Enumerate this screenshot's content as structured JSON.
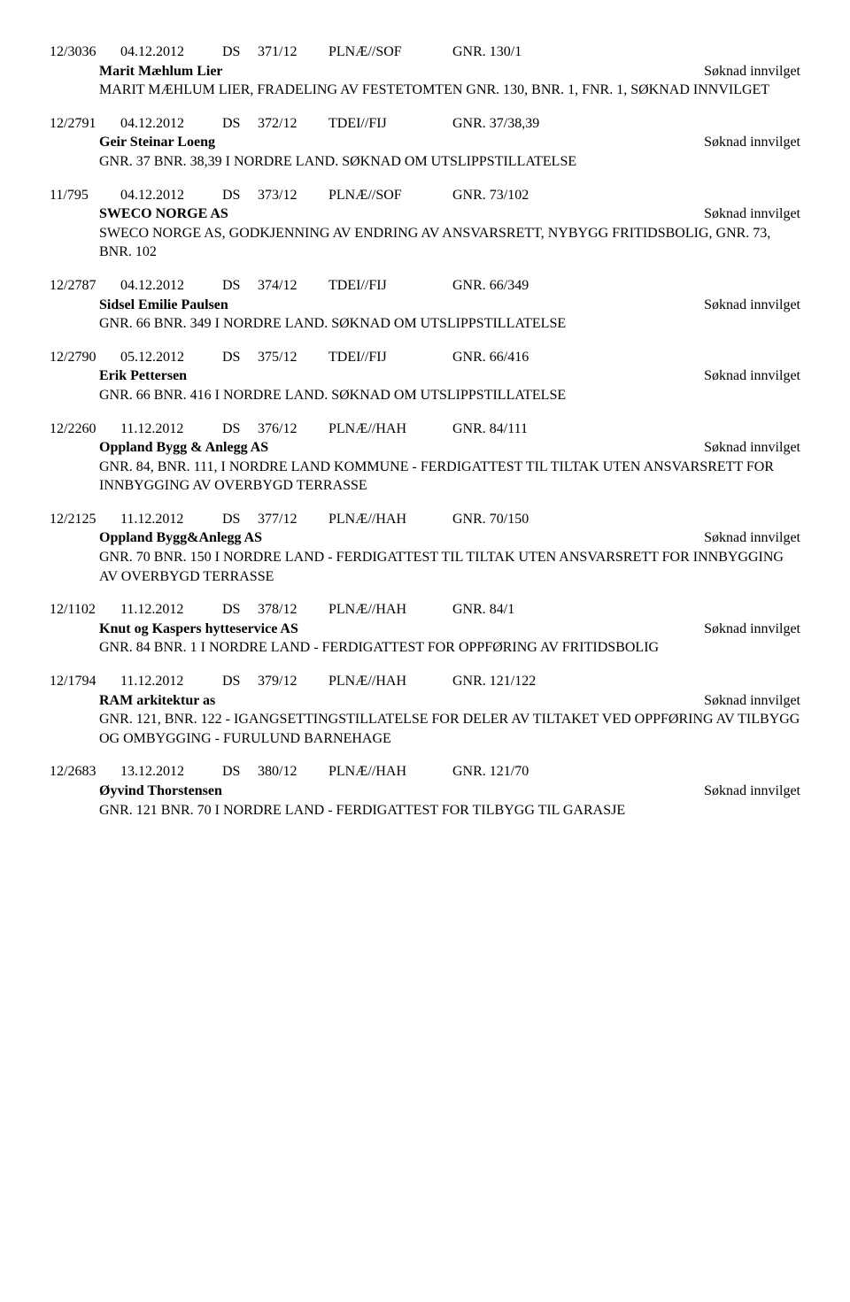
{
  "entries": [
    {
      "case": "12/3036",
      "date": "04.12.2012",
      "type": "DS",
      "num": "371/12",
      "dept": "PLNÆ//SOF",
      "gnr": "GNR. 130/1",
      "applicant": "Marit Mæhlum Lier",
      "status": "Søknad innvilget",
      "desc": "MARIT MÆHLUM LIER, FRADELING AV FESTETOMTEN GNR. 130, BNR. 1, FNR. 1, SØKNAD INNVILGET"
    },
    {
      "case": "12/2791",
      "date": "04.12.2012",
      "type": "DS",
      "num": "372/12",
      "dept": "TDEI//FIJ",
      "gnr": "GNR. 37/38,39",
      "applicant": "Geir Steinar Loeng",
      "status": "Søknad innvilget",
      "desc": "GNR. 37 BNR. 38,39 I NORDRE LAND. SØKNAD OM UTSLIPPSTILLATELSE"
    },
    {
      "case": "11/795",
      "date": "04.12.2012",
      "type": "DS",
      "num": "373/12",
      "dept": "PLNÆ//SOF",
      "gnr": "GNR. 73/102",
      "applicant": "SWECO NORGE AS",
      "status": "Søknad innvilget",
      "desc": "SWECO NORGE AS, GODKJENNING AV ENDRING AV ANSVARSRETT, NYBYGG FRITIDSBOLIG, GNR. 73, BNR. 102"
    },
    {
      "case": "12/2787",
      "date": "04.12.2012",
      "type": "DS",
      "num": "374/12",
      "dept": "TDEI//FIJ",
      "gnr": "GNR. 66/349",
      "applicant": "Sidsel Emilie Paulsen",
      "status": "Søknad innvilget",
      "desc": "GNR. 66 BNR. 349 I NORDRE LAND. SØKNAD OM UTSLIPPSTILLATELSE"
    },
    {
      "case": "12/2790",
      "date": "05.12.2012",
      "type": "DS",
      "num": "375/12",
      "dept": "TDEI//FIJ",
      "gnr": "GNR. 66/416",
      "applicant": "Erik Pettersen",
      "status": "Søknad innvilget",
      "desc": "GNR. 66 BNR. 416 I NORDRE LAND. SØKNAD OM UTSLIPPSTILLATELSE"
    },
    {
      "case": "12/2260",
      "date": "11.12.2012",
      "type": "DS",
      "num": "376/12",
      "dept": "PLNÆ//HAH",
      "gnr": "GNR. 84/111",
      "applicant": "Oppland Bygg & Anlegg AS",
      "status": "Søknad innvilget",
      "desc": "GNR. 84, BNR. 111, I NORDRE LAND KOMMUNE - FERDIGATTEST TIL TILTAK UTEN ANSVARSRETT FOR INNBYGGING AV OVERBYGD TERRASSE"
    },
    {
      "case": "12/2125",
      "date": "11.12.2012",
      "type": "DS",
      "num": "377/12",
      "dept": "PLNÆ//HAH",
      "gnr": "GNR. 70/150",
      "applicant": "Oppland Bygg&Anlegg AS",
      "status": "Søknad innvilget",
      "desc": "GNR. 70 BNR. 150 I NORDRE LAND - FERDIGATTEST TIL TILTAK UTEN ANSVARSRETT FOR INNBYGGING AV OVERBYGD TERRASSE"
    },
    {
      "case": "12/1102",
      "date": "11.12.2012",
      "type": "DS",
      "num": "378/12",
      "dept": "PLNÆ//HAH",
      "gnr": "GNR. 84/1",
      "applicant": "Knut og Kaspers hytteservice AS",
      "status": "Søknad innvilget",
      "desc": "GNR. 84 BNR. 1 I NORDRE LAND - FERDIGATTEST FOR OPPFØRING AV FRITIDSBOLIG"
    },
    {
      "case": "12/1794",
      "date": "11.12.2012",
      "type": "DS",
      "num": "379/12",
      "dept": "PLNÆ//HAH",
      "gnr": "GNR. 121/122",
      "applicant": "RAM arkitektur as",
      "status": "Søknad innvilget",
      "desc": "GNR. 121, BNR. 122 - IGANGSETTINGSTILLATELSE FOR DELER AV TILTAKET VED OPPFØRING AV TILBYGG OG OMBYGGING - FURULUND BARNEHAGE"
    },
    {
      "case": "12/2683",
      "date": "13.12.2012",
      "type": "DS",
      "num": "380/12",
      "dept": "PLNÆ//HAH",
      "gnr": "GNR. 121/70",
      "applicant": "Øyvind Thorstensen",
      "status": "Søknad innvilget",
      "desc": "GNR. 121 BNR. 70 I NORDRE LAND - FERDIGATTEST FOR TILBYGG TIL GARASJE"
    }
  ]
}
